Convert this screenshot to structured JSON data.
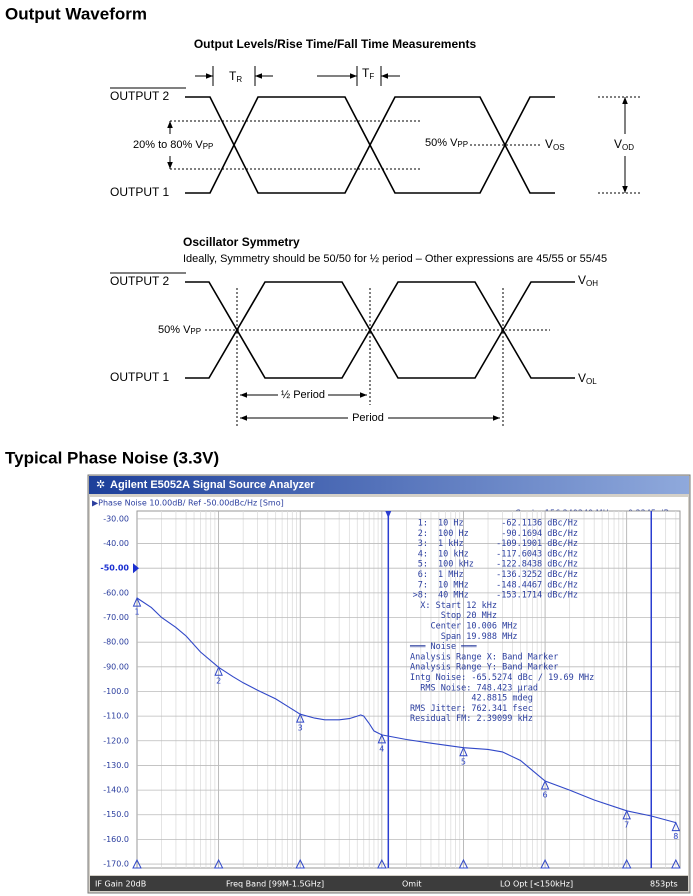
{
  "output_waveform": {
    "heading": "Output Waveform",
    "levels_diagram": {
      "title": "Output Levels/Rise Time/Fall Time Measurements",
      "output2": "OUTPUT 2",
      "output1": "OUTPUT 1",
      "rise_time": {
        "main": "T",
        "sub": "R"
      },
      "fall_time": {
        "main": "T",
        "sub": "F"
      },
      "swing": {
        "main": "20% to 80% V",
        "sub": "PP"
      },
      "midpoint": {
        "main": "50% V",
        "sub": "PP"
      },
      "offset": {
        "main": "V",
        "sub": "OS"
      },
      "differential": {
        "main": "V",
        "sub": "OD"
      }
    },
    "symmetry_diagram": {
      "title": "Oscillator Symmetry",
      "note": "Ideally, Symmetry should be 50/50 for ½ period – Other expressions are 45/55 or 55/45",
      "output2": "OUTPUT 2",
      "output1": "OUTPUT 1",
      "midpoint": {
        "main": "50% V",
        "sub": "PP"
      },
      "high": {
        "main": "V",
        "sub": "OH"
      },
      "low": {
        "main": "V",
        "sub": "OL"
      },
      "half_period": "½ Period",
      "period": "Period"
    }
  },
  "phase_noise": {
    "heading": "Typical Phase Noise (3.3V)",
    "window_title": "Agilent E5052A Signal Source Analyzer",
    "trace_header": "▶Phase Noise 10.00dB/ Ref -50.00dBc/Hz [Smo]",
    "carrier": "Carrier 156.249249 MHz",
    "power": "0.2245 dBm",
    "status_bar": [
      "IF Gain 20dB",
      "Freq Band [99M-1.5GHz]",
      "Omit",
      "LO Opt [<150kHz]",
      "853pts"
    ],
    "chart_data": {
      "type": "line",
      "x": [
        10,
        15,
        20,
        30,
        40,
        60,
        100,
        150,
        200,
        300,
        500,
        700,
        1000,
        1500,
        2000,
        3000,
        4000,
        5000,
        5500,
        6000,
        7000,
        8000,
        10000,
        20000,
        40000,
        100000,
        200000,
        300000,
        500000,
        700000,
        1000000,
        2000000,
        4000000,
        10000000,
        20000000,
        40000000
      ],
      "series": [
        {
          "color": "#3148c8",
          "values": [
            -62.1,
            -66,
            -70,
            -74,
            -77.5,
            -84,
            -90.2,
            -94,
            -96.5,
            -99.5,
            -103,
            -106,
            -109.2,
            -110.8,
            -111.5,
            -111.5,
            -111,
            -110,
            -109.5,
            -110,
            -113,
            -116,
            -117.6,
            -119.5,
            -121,
            -122.8,
            -123.5,
            -124.5,
            -128,
            -132,
            -136.3,
            -140,
            -144,
            -148.4,
            -150.5,
            -153.2
          ]
        }
      ],
      "log_x": true,
      "xlim": [
        10,
        45000000
      ],
      "ylim": [
        -171.6,
        -26.8
      ],
      "yticks": [
        {
          "value": -30,
          "label": "-30.00"
        },
        {
          "value": -40,
          "label": "-40.00"
        },
        {
          "value": -50,
          "label": "-50.00"
        },
        {
          "value": -60,
          "label": "-60.00"
        },
        {
          "value": -70,
          "label": "-70.00"
        },
        {
          "value": -80,
          "label": "-80.00"
        },
        {
          "value": -90,
          "label": "-90.00"
        },
        {
          "value": -100,
          "label": "-100.0"
        },
        {
          "value": -110,
          "label": "-110.0"
        },
        {
          "value": -120,
          "label": "-120.0"
        },
        {
          "value": -130,
          "label": "-130.0"
        },
        {
          "value": -140,
          "label": "-140.0"
        },
        {
          "value": -150,
          "label": "-150.0"
        },
        {
          "value": -160,
          "label": "-160.0"
        },
        {
          "value": -170,
          "label": "-170.0"
        }
      ],
      "reference_level": -50,
      "grid": true,
      "band_x": [
        12000,
        20000000
      ],
      "markers": {
        "ids": [
          "1",
          "2",
          "3",
          "4",
          "5",
          "6",
          "7",
          "8"
        ],
        "x": [
          10,
          100,
          1000,
          10000,
          100000,
          1000000,
          10000000,
          40000000
        ],
        "values": [
          -62.1136,
          -90.1694,
          -109.1901,
          -117.6043,
          -122.8438,
          -136.3252,
          -148.4467,
          -153.1714
        ]
      },
      "marker_table": [
        [
          "1:",
          "10 Hz",
          "-62.1136 dBc/Hz"
        ],
        [
          "2:",
          "100 Hz",
          "-90.1694 dBc/Hz"
        ],
        [
          "3:",
          "1 kHz",
          "-109.1901 dBc/Hz"
        ],
        [
          "4:",
          "10 kHz",
          "-117.6043 dBc/Hz"
        ],
        [
          "5:",
          "100 kHz",
          "-122.8438 dBc/Hz"
        ],
        [
          "6:",
          "1 MHz",
          "-136.3252 dBc/Hz"
        ],
        [
          "7:",
          "10 MHz",
          "-148.4467 dBc/Hz"
        ],
        [
          ">8:",
          "40 MHz",
          "-153.1714 dBc/Hz"
        ]
      ],
      "info_lines": [
        "  X: Start 12 kHz",
        "      Stop 20 MHz",
        "    Center 10.006 MHz",
        "      Span 19.988 MHz",
        "═══ Noise ═══",
        "Analysis Range X: Band Marker",
        "Analysis Range Y: Band Marker",
        "Intg Noise: -65.5274 dBc / 19.69 MHz",
        "  RMS Noise: 748.423 µrad",
        "            42.8815 mdeg",
        "RMS Jitter: 762.341 fsec",
        "Residual FM: 2.39099 kHz"
      ]
    }
  }
}
